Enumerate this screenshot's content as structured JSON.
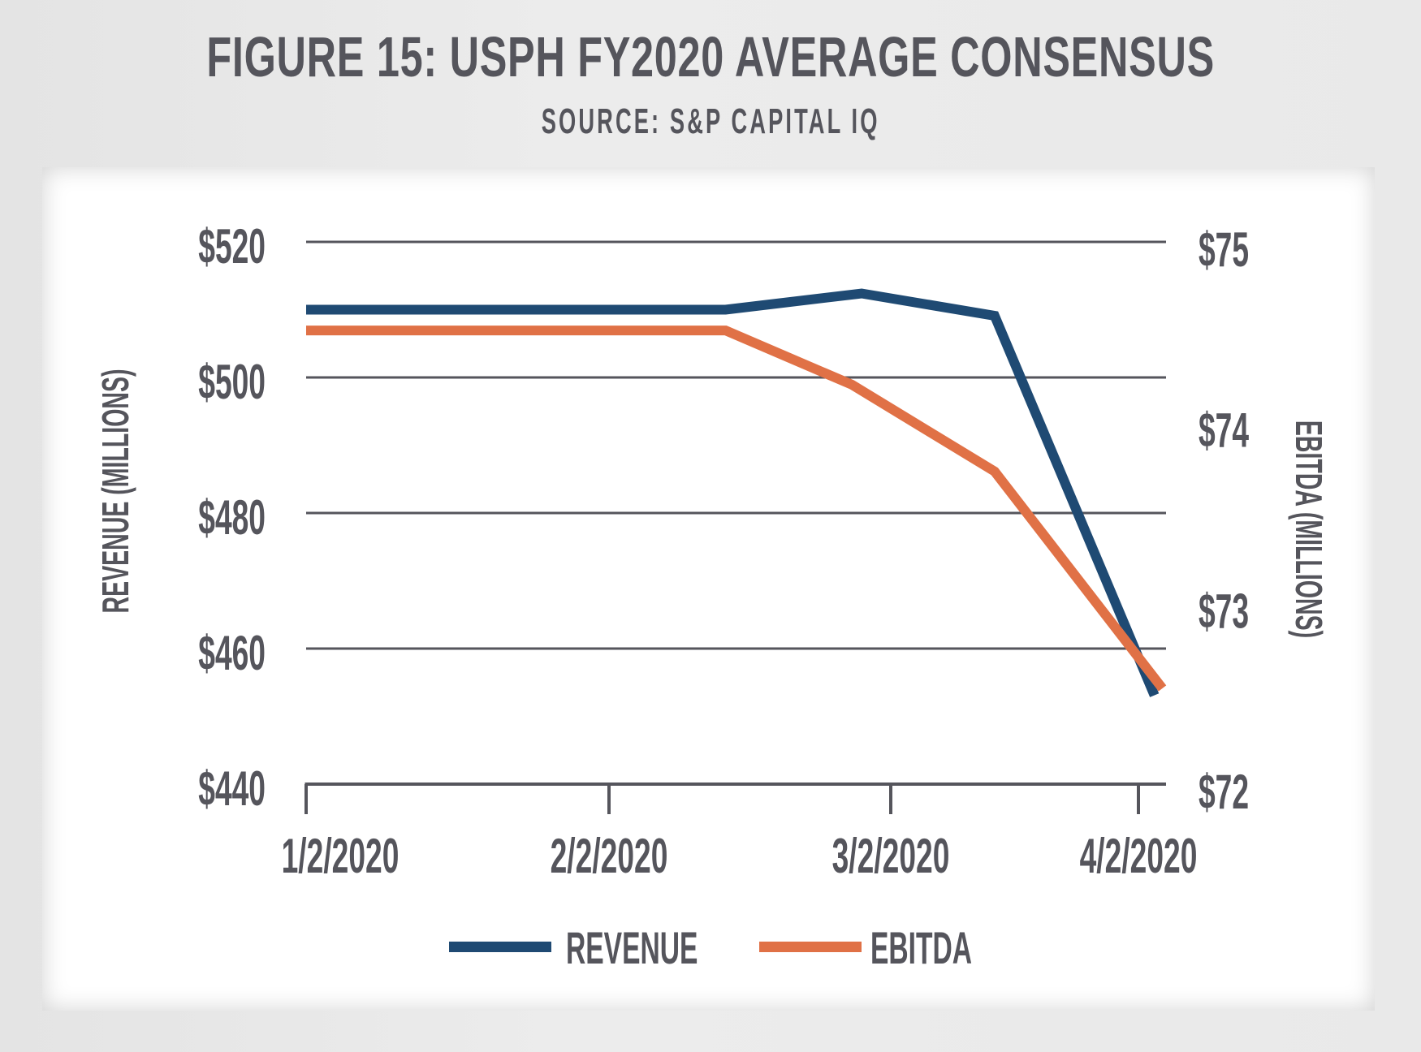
{
  "header": {
    "title": "FIGURE 15: USPH FY2020 AVERAGE CONSENSUS",
    "subtitle": "SOURCE: S&P CAPITAL IQ"
  },
  "colors": {
    "revenue": "#1f4a73",
    "ebitda": "#e07146",
    "text": "#55555c",
    "grid": "#55555c"
  },
  "chart_data": {
    "type": "line",
    "title": "FIGURE 15: USPH FY2020 AVERAGE CONSENSUS",
    "subtitle": "SOURCE: S&P CAPITAL IQ",
    "xlabel": "",
    "x_ticks": [
      "1/2/2020",
      "2/2/2020",
      "3/2/2020",
      "4/2/2020"
    ],
    "y_left": {
      "label": "REVENUE (MILLIONS)",
      "ticks": [
        "$440",
        "$460",
        "$480",
        "$500",
        "$520"
      ],
      "tick_values": [
        440,
        460,
        480,
        500,
        520
      ],
      "range": [
        440,
        520
      ]
    },
    "y_right": {
      "label": "EBITDA (MILLIONS)",
      "ticks": [
        "$72",
        "$73",
        "$74",
        "$75"
      ],
      "tick_values": [
        72,
        73,
        74,
        75
      ],
      "range": [
        72,
        75
      ]
    },
    "grid": true,
    "legend_position": "bottom",
    "series": [
      {
        "name": "REVENUE",
        "axis": "left",
        "points": [
          {
            "x": "2020-01-02",
            "y": 510.0
          },
          {
            "x": "2020-02-14",
            "y": 510.0
          },
          {
            "x": "2020-02-28",
            "y": 512.4
          },
          {
            "x": "2020-03-15",
            "y": 509.1
          },
          {
            "x": "2020-04-04",
            "y": 453.1
          }
        ]
      },
      {
        "name": "EBITDA",
        "axis": "right",
        "points": [
          {
            "x": "2020-01-02",
            "y": 74.51
          },
          {
            "x": "2020-02-14",
            "y": 74.51
          },
          {
            "x": "2020-02-27",
            "y": 74.21
          },
          {
            "x": "2020-03-15",
            "y": 73.73
          },
          {
            "x": "2020-04-05",
            "y": 72.53
          }
        ]
      }
    ]
  },
  "legend": [
    {
      "label": "REVENUE"
    },
    {
      "label": "EBITDA"
    }
  ]
}
